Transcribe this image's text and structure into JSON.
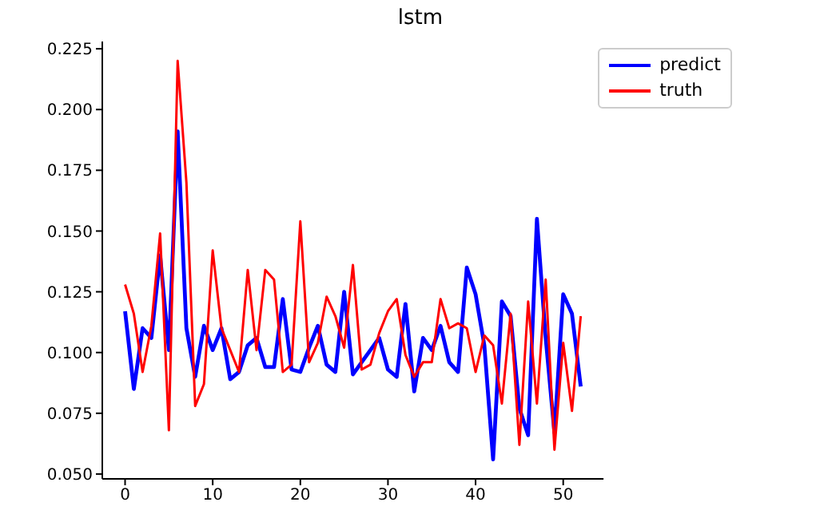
{
  "chart_data": {
    "type": "line",
    "title": "lstm",
    "x": [
      0,
      1,
      2,
      3,
      4,
      5,
      6,
      7,
      8,
      9,
      10,
      11,
      12,
      13,
      14,
      15,
      16,
      17,
      18,
      19,
      20,
      21,
      22,
      23,
      24,
      25,
      26,
      27,
      28,
      29,
      30,
      31,
      32,
      33,
      34,
      35,
      36,
      37,
      38,
      39,
      40,
      41,
      42,
      43,
      44,
      45,
      46,
      47,
      48,
      49,
      50,
      51,
      52
    ],
    "series": [
      {
        "name": "predict",
        "color": "#0000ff",
        "values": [
          0.117,
          0.085,
          0.11,
          0.106,
          0.14,
          0.101,
          0.191,
          0.11,
          0.09,
          0.111,
          0.101,
          0.11,
          0.089,
          0.092,
          0.103,
          0.106,
          0.094,
          0.094,
          0.122,
          0.093,
          0.092,
          0.102,
          0.111,
          0.095,
          0.092,
          0.125,
          0.091,
          0.096,
          0.101,
          0.106,
          0.093,
          0.09,
          0.12,
          0.084,
          0.106,
          0.101,
          0.111,
          0.096,
          0.092,
          0.135,
          0.124,
          0.103,
          0.056,
          0.121,
          0.115,
          0.077,
          0.066,
          0.155,
          0.106,
          0.067,
          0.124,
          0.116,
          0.086
        ]
      },
      {
        "name": "truth",
        "color": "#ff0000",
        "values": [
          0.128,
          0.116,
          0.092,
          0.111,
          0.149,
          0.068,
          0.22,
          0.17,
          0.078,
          0.087,
          0.142,
          0.11,
          0.101,
          0.092,
          0.134,
          0.101,
          0.134,
          0.13,
          0.092,
          0.095,
          0.154,
          0.096,
          0.104,
          0.123,
          0.115,
          0.102,
          0.136,
          0.093,
          0.095,
          0.108,
          0.117,
          0.122,
          0.099,
          0.09,
          0.096,
          0.096,
          0.122,
          0.11,
          0.112,
          0.11,
          0.092,
          0.107,
          0.103,
          0.079,
          0.116,
          0.062,
          0.121,
          0.079,
          0.13,
          0.06,
          0.104,
          0.076,
          0.115
        ]
      }
    ],
    "xlim": [
      -2.6,
      54.6
    ],
    "xticks": [
      0,
      10,
      20,
      30,
      40,
      50
    ],
    "ylim": [
      0.048,
      0.228
    ],
    "yticks": [
      {
        "value": 0.05,
        "label": "0.050"
      },
      {
        "value": 0.075,
        "label": "0.075"
      },
      {
        "value": 0.1,
        "label": "0.100"
      },
      {
        "value": 0.125,
        "label": "0.125"
      },
      {
        "value": 0.15,
        "label": "0.150"
      },
      {
        "value": 0.175,
        "label": "0.175"
      },
      {
        "value": 0.2,
        "label": "0.200"
      },
      {
        "value": 0.225,
        "label": "0.225"
      }
    ],
    "legend": "top right",
    "marker": "none",
    "line_style": "solid",
    "grid": false
  }
}
